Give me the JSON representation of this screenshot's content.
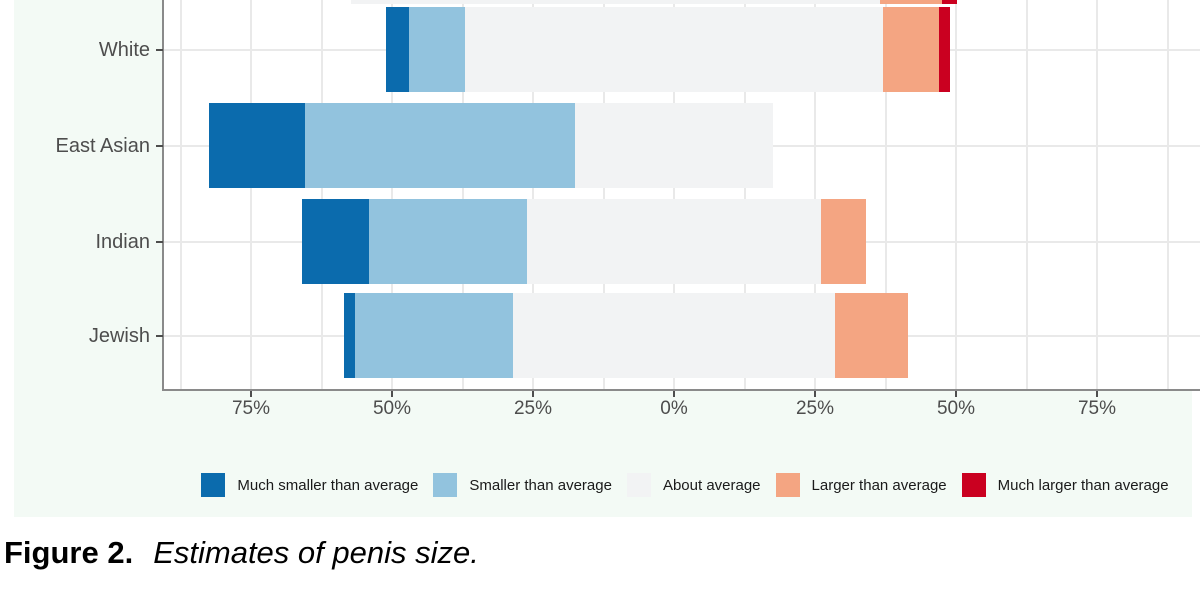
{
  "figure": {
    "caption_label": "Figure 2.",
    "caption_text": "Estimates of penis size."
  },
  "chart_data": {
    "type": "bar",
    "subtype": "diverging-stacked-likert",
    "orientation": "horizontal",
    "units": "percent",
    "title": "",
    "xlabel": "",
    "ylabel": "",
    "grid": true,
    "legend_position": "bottom",
    "neutral_category_centered_on_zero": true,
    "plot_background_color": "#f3faf5",
    "panel_background_color": "#ffffff",
    "categories": [
      "White",
      "East Asian",
      "Indian",
      "Jewish"
    ],
    "series": [
      {
        "name": "Much smaller than average",
        "color": "#0b6bad",
        "values": [
          4,
          17,
          12,
          2
        ]
      },
      {
        "name": "Smaller than average",
        "color": "#92c3de",
        "values": [
          10,
          48,
          28,
          28
        ]
      },
      {
        "name": "About average",
        "color": "#f2f3f4",
        "values": [
          74,
          35,
          52,
          57
        ]
      },
      {
        "name": "Larger than average",
        "color": "#f4a582",
        "values": [
          10,
          0,
          8,
          13
        ]
      },
      {
        "name": "Much larger than average",
        "color": "#ca0020",
        "values": [
          2,
          0,
          0,
          0
        ]
      }
    ],
    "x_ticks": [
      {
        "value": -75,
        "label": "75%"
      },
      {
        "value": -50,
        "label": "50%"
      },
      {
        "value": -25,
        "label": "25%"
      },
      {
        "value": 0,
        "label": "0%"
      },
      {
        "value": 25,
        "label": "25%"
      },
      {
        "value": 50,
        "label": "50%"
      },
      {
        "value": 75,
        "label": "75%"
      }
    ],
    "x_range": [
      -90.4,
      94.3
    ],
    "minor_grid_step_percent": 12.5,
    "cropped_top_row": {
      "note": "bottom sliver of an additional category bar cut off by the top edge of the screenshot",
      "segments": [
        {
          "series": "About average",
          "from": -57.3,
          "to": 36.5
        },
        {
          "series": "Larger than average",
          "from": 36.5,
          "to": 47.5
        },
        {
          "series": "Much larger than average",
          "from": 47.5,
          "to": 50.2
        }
      ]
    }
  }
}
